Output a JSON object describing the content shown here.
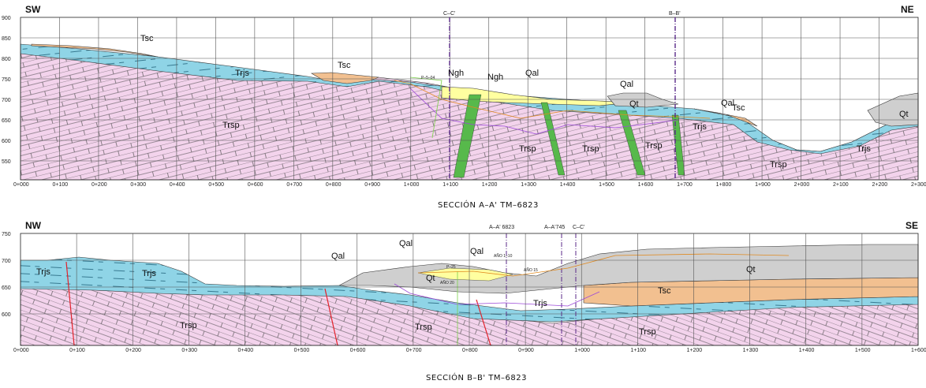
{
  "section_a": {
    "title": "SECCIÓN A–A' TM–6823",
    "left_dir": "SW",
    "right_dir": "NE",
    "y_ticks": [
      "900",
      "850",
      "800",
      "750",
      "700",
      "650",
      "600",
      "550"
    ],
    "x_ticks": [
      "0+000",
      "0+100",
      "0+200",
      "0+300",
      "0+400",
      "0+500",
      "0+600",
      "0+700",
      "0+800",
      "0+900",
      "1+000",
      "1+100",
      "1+200",
      "1+300",
      "1+400",
      "1+500",
      "1+600",
      "1+700",
      "1+800",
      "1+900",
      "2+000",
      "2+100",
      "2+200",
      "2+300"
    ],
    "crossings": [
      "C–C'",
      "B–B'"
    ],
    "units": {
      "tsc1": "Tsc",
      "tsc2": "Tsc",
      "tsc3": "Tsc",
      "trjs1": "Trjs",
      "trjs2": "Trjs",
      "trjs3": "Trjs",
      "trsp1": "Trsp",
      "trsp2": "Trsp",
      "trsp3": "Trsp",
      "trsp4": "Trsp",
      "trsp5": "Trsp",
      "ngh1": "Ngh",
      "ngh2": "Ngh",
      "qal1": "Qal",
      "qal2": "Qal",
      "qal3": "Qal",
      "qt1": "Qt",
      "qt2": "Qt"
    },
    "borehole": "P–5–04"
  },
  "section_b": {
    "title": "SECCIÓN B–B' TM–6823",
    "left_dir": "NW",
    "right_dir": "SE",
    "y_ticks": [
      "750",
      "700",
      "650",
      "600"
    ],
    "x_ticks": [
      "0+000",
      "0+100",
      "0+200",
      "0+300",
      "0+400",
      "0+500",
      "0+600",
      "0+700",
      "0+800",
      "0+900",
      "1+000",
      "1+100",
      "1+200",
      "1+300",
      "1+400",
      "1+500",
      "1+600"
    ],
    "crossings": [
      "A–A' 6823",
      "A–A'745",
      "C–C'"
    ],
    "units": {
      "trjs1": "Trjs",
      "trjs2": "Trjs",
      "trjs3": "Trjs",
      "trsp1": "Trsp",
      "trsp2": "Trsp",
      "trsp3": "Trsp",
      "qal1": "Qal",
      "qal2": "Qal",
      "qal3": "Qal",
      "qt1": "Qt",
      "qt2": "Qt",
      "tsc1": "Tsc"
    },
    "borehole": "P–25",
    "small_labels": [
      "AÑO 1–10",
      "AÑO 15",
      "AÑO 20"
    ]
  },
  "colors": {
    "trsp": "#f3d3ec",
    "trjs": "#8fd4e6",
    "tsc": "#f2c090",
    "qt": "#cfcfcf",
    "ngh": "#ffffa0",
    "dyke": "#57b94b",
    "fault": "#e3202a",
    "crossing": "#5b2a8a"
  }
}
